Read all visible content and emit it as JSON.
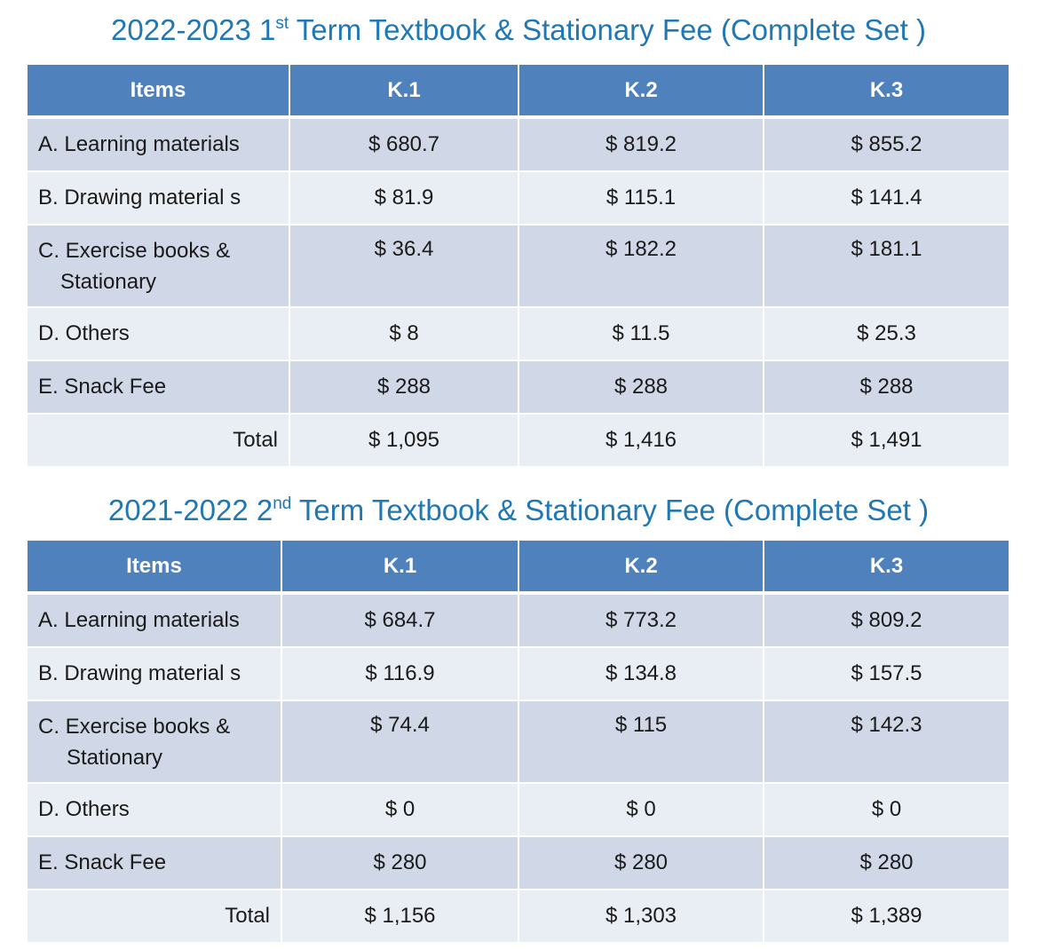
{
  "tables": [
    {
      "title": {
        "prefix": "2022-2023 1",
        "sup": "st",
        "suffix": " Term Textbook & Stationary Fee (Complete Set )"
      },
      "headers": [
        "Items",
        "K.1",
        "K.2",
        "K.3"
      ],
      "rows": [
        {
          "item": "A.  Learning materials",
          "k1": "$ 680.7",
          "k2": "$ 819.2",
          "k3": "$ 855.2"
        },
        {
          "item": "B. Drawing material s",
          "k1": "$ 81.9",
          "k2": "$ 115.1",
          "k3": "$ 141.4"
        },
        {
          "item": "C. Exercise books &",
          "item_line2": "Stationary",
          "k1": "$ 36.4",
          "k2": "$ 182.2",
          "k3": "$ 181.1"
        },
        {
          "item": "D. Others",
          "k1": "$ 8",
          "k2": "$ 11.5",
          "k3": "$ 25.3"
        },
        {
          "item": "E.  Snack Fee",
          "k1": "$ 288",
          "k2": "$ 288",
          "k3": "$ 288"
        }
      ],
      "total": {
        "label": "Total",
        "k1": "$ 1,095",
        "k2": "$ 1,416",
        "k3": "$ 1,491"
      }
    },
    {
      "title": {
        "prefix": "2021-2022 2",
        "sup": "nd",
        "suffix": " Term Textbook & Stationary Fee (Complete Set )"
      },
      "headers": [
        "Items",
        "K.1",
        "K.2",
        "K.3"
      ],
      "rows": [
        {
          "item": "A.  Learning materials",
          "k1": "$ 684.7",
          "k2": "$ 773.2",
          "k3": "$ 809.2"
        },
        {
          "item": "B. Drawing material s",
          "k1": "$ 116.9",
          "k2": "$ 134.8",
          "k3": "$ 157.5"
        },
        {
          "item": "C. Exercise books &",
          "item_line2": "Stationary",
          "k1": "$ 74.4",
          "k2": "$ 115",
          "k3": "$ 142.3"
        },
        {
          "item": "D. Others",
          "k1": "$ 0",
          "k2": "$ 0",
          "k3": "$ 0"
        },
        {
          "item": "E.  Snack Fee",
          "k1": "$ 280",
          "k2": "$ 280",
          "k3": "$ 280"
        }
      ],
      "total": {
        "label": "Total",
        "k1": "$ 1,156",
        "k2": "$ 1,303",
        "k3": "$ 1,389"
      }
    }
  ],
  "colors": {
    "header_bg": "#4f81bd",
    "title": "#1f77b4",
    "row_odd": "#d0d8e8",
    "row_even": "#e9edf4"
  }
}
